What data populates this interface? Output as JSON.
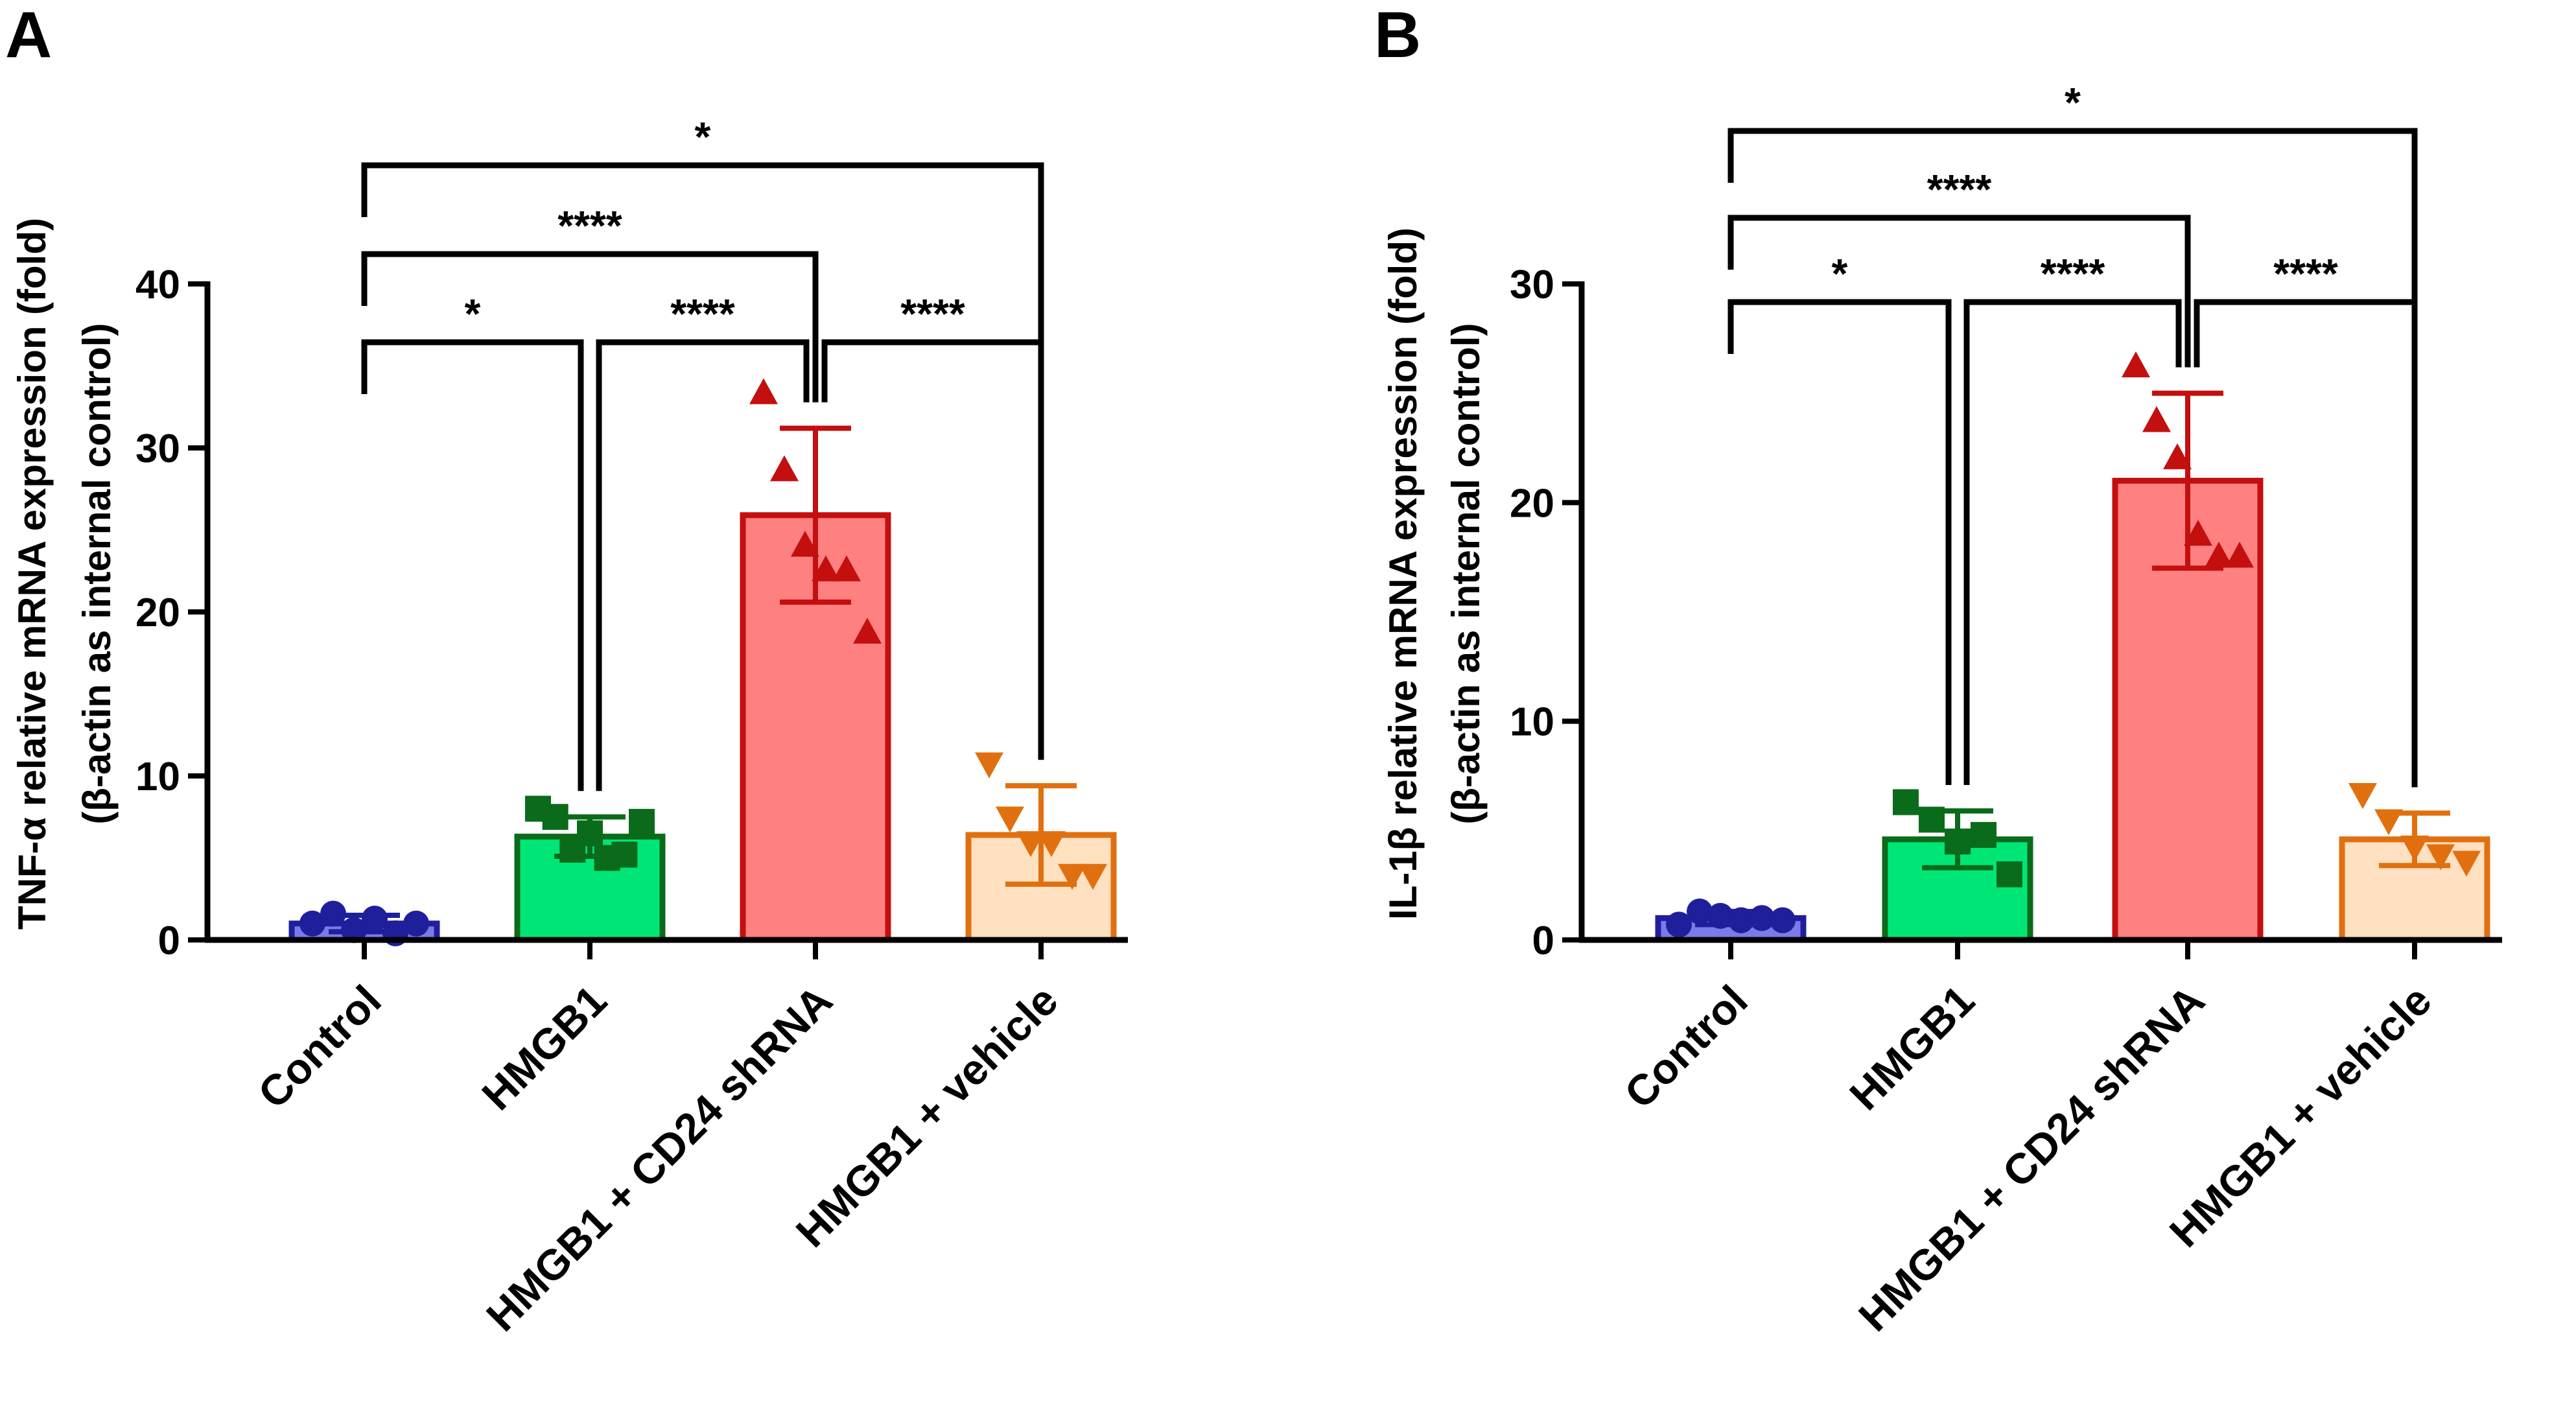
{
  "colors": {
    "control": {
      "fill": "#7b7be8",
      "stroke": "#1f1f9c",
      "marker": "#1f1f9c"
    },
    "hmgb1": {
      "fill": "#00e676",
      "stroke": "#0a6b1a",
      "marker": "#0a6b1a"
    },
    "shrna": {
      "fill": "#ff8080",
      "stroke": "#c40f0f",
      "marker": "#c40f0f"
    },
    "vehicle": {
      "fill": "#ffe0c0",
      "stroke": "#e0700f",
      "marker": "#e0700f"
    }
  },
  "chart_data": [
    {
      "panel": "A",
      "type": "bar",
      "ylabel_line1": "TNF-α relative mRNA expression (fold)",
      "ylabel_line2": "(β-actin as internal control)",
      "ylim": [
        0,
        40
      ],
      "yticks": [
        "0",
        "10",
        "20",
        "30",
        "40"
      ],
      "categories": [
        "Control",
        "HMGB1",
        "HMGB1 + CD24 shRNA",
        "HMGB1 + vehicle"
      ],
      "marker_shapes": [
        "circle",
        "square",
        "triangle-up",
        "triangle-down"
      ],
      "values": [
        1.0,
        6.3,
        25.9,
        6.4
      ],
      "sd": [
        0.5,
        1.2,
        5.3,
        3.0
      ],
      "points": [
        [
          1.0,
          1.6,
          0.6,
          1.3,
          0.4,
          1.0
        ],
        [
          8.0,
          7.5,
          5.5,
          6.5,
          5.0,
          5.2,
          7.2
        ],
        [
          33.3,
          28.6,
          24.0,
          22.5,
          22.5,
          18.7
        ],
        [
          10.8,
          7.5,
          6.0,
          6.0,
          4.0,
          4.0
        ]
      ],
      "comparisons": [
        {
          "from": 0,
          "to": 1,
          "label": "*"
        },
        {
          "from": 1,
          "to": 2,
          "label": "****"
        },
        {
          "from": 2,
          "to": 3,
          "label": "****"
        },
        {
          "from": 0,
          "to": 2,
          "label": "****"
        },
        {
          "from": 0,
          "to": 3,
          "label": "*"
        }
      ]
    },
    {
      "panel": "B",
      "type": "bar",
      "ylabel_line1": "IL-1β relative mRNA expression (fold)",
      "ylabel_line2": "(β-actin as internal control)",
      "ylim": [
        0,
        30
      ],
      "yticks": [
        "0",
        "10",
        "20",
        "30"
      ],
      "categories": [
        "Control",
        "HMGB1",
        "HMGB1 + CD24 shRNA",
        "HMGB1 + vehicle"
      ],
      "marker_shapes": [
        "circle",
        "square",
        "triangle-up",
        "triangle-down"
      ],
      "values": [
        1.0,
        4.6,
        21.0,
        4.6
      ],
      "sd": [
        0.3,
        1.3,
        4.0,
        1.2
      ],
      "points": [
        [
          0.7,
          1.3,
          1.1,
          0.9,
          1.0,
          0.9
        ],
        [
          6.3,
          5.5,
          4.5,
          4.8,
          3.0
        ],
        [
          26.2,
          23.7,
          22.0,
          18.5,
          17.5,
          17.5
        ],
        [
          6.7,
          5.5,
          4.3,
          3.9,
          3.6
        ]
      ],
      "comparisons": [
        {
          "from": 0,
          "to": 1,
          "label": "*"
        },
        {
          "from": 1,
          "to": 2,
          "label": "****"
        },
        {
          "from": 2,
          "to": 3,
          "label": "****"
        },
        {
          "from": 0,
          "to": 2,
          "label": "****"
        },
        {
          "from": 0,
          "to": 3,
          "label": "*"
        }
      ]
    }
  ]
}
